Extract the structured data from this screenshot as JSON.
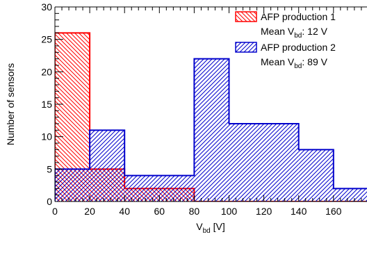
{
  "chart_data": {
    "type": "bar",
    "histogram": true,
    "bin_edges": [
      0,
      20,
      40,
      80,
      100,
      140,
      160,
      180
    ],
    "series": [
      {
        "name": "AFP production 1",
        "stat_label": "Mean",
        "stat_var": "V",
        "stat_sub": "bd",
        "stat_value": ": 12 V",
        "values": [
          26,
          5,
          2,
          0,
          0,
          0,
          0
        ],
        "color": "#ff0000",
        "hatch": "backslash"
      },
      {
        "name": "AFP production 2",
        "stat_label": "Mean",
        "stat_var": "V",
        "stat_sub": "bd",
        "stat_value": ": 89 V",
        "values": [
          5,
          11,
          4,
          22,
          12,
          8,
          2
        ],
        "color": "#0000cc",
        "hatch": "slash"
      }
    ],
    "xlabel_main": "V",
    "xlabel_sub": "bd",
    "xlabel_unit": " [V]",
    "ylabel": "Number of sensors",
    "xlim": [
      0,
      180
    ],
    "ylim": [
      0,
      30
    ],
    "x_ticks": [
      0,
      20,
      40,
      60,
      80,
      100,
      120,
      140,
      160
    ],
    "y_ticks": [
      0,
      5,
      10,
      15,
      20,
      25,
      30
    ],
    "legend_position": "top-right",
    "grid": false
  }
}
